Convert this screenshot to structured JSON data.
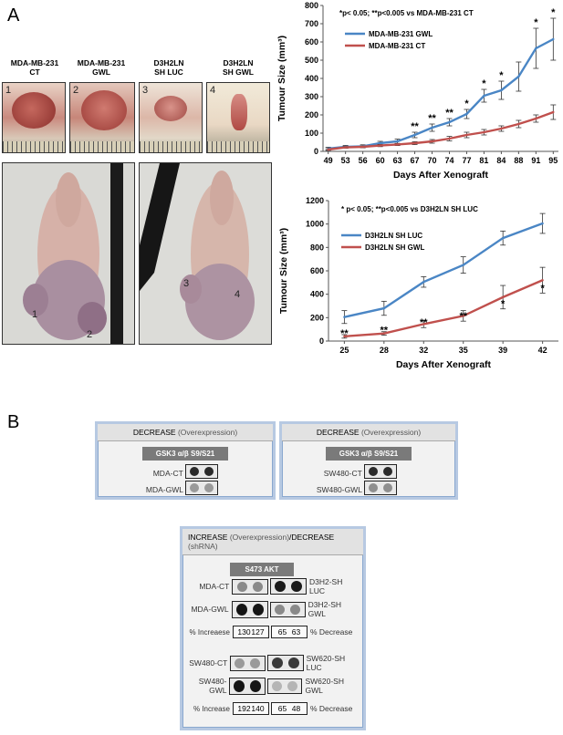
{
  "panel_a_label": "A",
  "panel_b_label": "B",
  "tumor_labels": [
    {
      "line1": "MDA-MB-231",
      "line2": "CT"
    },
    {
      "line1": "MDA-MB-231",
      "line2": "GWL"
    },
    {
      "line1": "D3H2LN",
      "line2": "SH LUC"
    },
    {
      "line1": "D3H2LN",
      "line2": "SH GWL"
    }
  ],
  "photo_numbers": [
    "1",
    "2",
    "3",
    "4"
  ],
  "mouse_numbers": [
    "1",
    "2",
    "3",
    "4"
  ],
  "chart_data": [
    {
      "type": "line",
      "annotation": "*p< 0.05;  **p<0.005 vs MDA-MB-231 CT",
      "xlabel": "Days After Xenograft",
      "ylabel": "Tumour Size (mm³)",
      "ylim": [
        0,
        800
      ],
      "yticks": [
        0,
        100,
        200,
        300,
        400,
        500,
        600,
        700,
        800
      ],
      "x": [
        49,
        53,
        56,
        60,
        63,
        67,
        70,
        74,
        77,
        81,
        84,
        88,
        91,
        95
      ],
      "series": [
        {
          "name": "MDA-MB-231 GWL",
          "color": "#4a86c5",
          "values": [
            15,
            25,
            28,
            45,
            55,
            90,
            130,
            160,
            205,
            305,
            335,
            410,
            565,
            615
          ],
          "errors": [
            8,
            8,
            8,
            10,
            12,
            15,
            20,
            20,
            25,
            35,
            50,
            80,
            110,
            115
          ]
        },
        {
          "name": "MDA-MB-231 CT",
          "color": "#c0504d",
          "values": [
            10,
            22,
            25,
            32,
            38,
            45,
            55,
            70,
            90,
            105,
            125,
            150,
            180,
            215
          ],
          "errors": [
            5,
            5,
            5,
            6,
            6,
            8,
            10,
            12,
            15,
            15,
            15,
            20,
            20,
            40
          ]
        }
      ],
      "sig_marks": [
        {
          "x": 67,
          "mark": "**"
        },
        {
          "x": 70,
          "mark": "**"
        },
        {
          "x": 74,
          "mark": "**"
        },
        {
          "x": 77,
          "mark": "*"
        },
        {
          "x": 81,
          "mark": "*"
        },
        {
          "x": 84,
          "mark": "*"
        },
        {
          "x": 91,
          "mark": "*"
        },
        {
          "x": 95,
          "mark": "*"
        }
      ]
    },
    {
      "type": "line",
      "annotation": "* p< 0.05; **p<0.005 vs D3H2LN SH LUC",
      "xlabel": "Days After Xenograft",
      "ylabel": "Tumour Size (mm³)",
      "ylim": [
        0,
        1200
      ],
      "yticks": [
        0,
        200,
        400,
        600,
        800,
        1000,
        1200
      ],
      "x": [
        25,
        28,
        32,
        35,
        39,
        42
      ],
      "series": [
        {
          "name": "D3H2LN SH LUC",
          "color": "#4a86c5",
          "values": [
            205,
            280,
            505,
            650,
            880,
            1005
          ],
          "errors": [
            55,
            60,
            45,
            70,
            60,
            85
          ]
        },
        {
          "name": "D3H2LN SH GWL",
          "color": "#c0504d",
          "values": [
            40,
            65,
            145,
            215,
            375,
            520
          ],
          "errors": [
            15,
            15,
            30,
            45,
            100,
            110
          ]
        }
      ],
      "sig_marks": [
        {
          "x": 25,
          "mark": "**"
        },
        {
          "x": 28,
          "mark": "**"
        },
        {
          "x": 32,
          "mark": "**"
        },
        {
          "x": 35,
          "mark": "**"
        },
        {
          "x": 39,
          "mark": "*"
        },
        {
          "x": 42,
          "mark": "*"
        }
      ]
    }
  ],
  "blot_box1": {
    "header_main": "DECREASE",
    "header_note": "(Overexpression)",
    "target": "GSK3 α/β S9/S21",
    "rows": [
      {
        "label": "MDA-CT",
        "dots": [
          "#2a2a2a",
          "#2a2a2a"
        ]
      },
      {
        "label": "MDA-GWL",
        "dots": [
          "#9a9a9a",
          "#9a9a9a"
        ]
      }
    ]
  },
  "blot_box2": {
    "header_main": "DECREASE",
    "header_note": "(Overexpression)",
    "target": "GSK3 α/β S9/S21",
    "rows": [
      {
        "label": "SW480-CT",
        "dots": [
          "#2a2a2a",
          "#2a2a2a"
        ]
      },
      {
        "label": "SW480-GWL",
        "dots": [
          "#8f8f8f",
          "#8f8f8f"
        ]
      }
    ]
  },
  "blot_box3": {
    "header_main1": "INCREASE",
    "header_note1": "(Overexpression)",
    "header_main2": "/DECREASE",
    "header_note2": "(shRNA)",
    "target": "S473 AKT",
    "group1": {
      "left": [
        {
          "label": "MDA-CT",
          "dots": [
            "#8a8a8a",
            "#8a8a8a"
          ]
        },
        {
          "label": "MDA-GWL",
          "dots": [
            "#151515",
            "#151515"
          ]
        }
      ],
      "right": [
        {
          "label": "D3H2-SH LUC",
          "dots": [
            "#1a1a1a",
            "#1a1a1a"
          ]
        },
        {
          "label": "D3H2-SH GWL",
          "dots": [
            "#8a8a8a",
            "#8a8a8a"
          ]
        }
      ],
      "left_caption": "% Increaese",
      "left_values": [
        "130",
        "127"
      ],
      "right_caption": "% Decrease",
      "right_values": [
        "65",
        "63"
      ]
    },
    "group2": {
      "left": [
        {
          "label": "SW480-CT",
          "dots": [
            "#9a9a9a",
            "#9a9a9a"
          ]
        },
        {
          "label": "SW480-GWL",
          "dots": [
            "#151515",
            "#151515"
          ]
        }
      ],
      "right": [
        {
          "label": "SW620-SH LUC",
          "dots": [
            "#3a3a3a",
            "#3a3a3a"
          ]
        },
        {
          "label": "SW620-SH GWL",
          "dots": [
            "#b5b5b5",
            "#b5b5b5"
          ]
        }
      ],
      "left_caption": "% Increase",
      "left_values": [
        "192",
        "140"
      ],
      "right_caption": "% Decrease",
      "right_values": [
        "65",
        "48"
      ]
    }
  }
}
